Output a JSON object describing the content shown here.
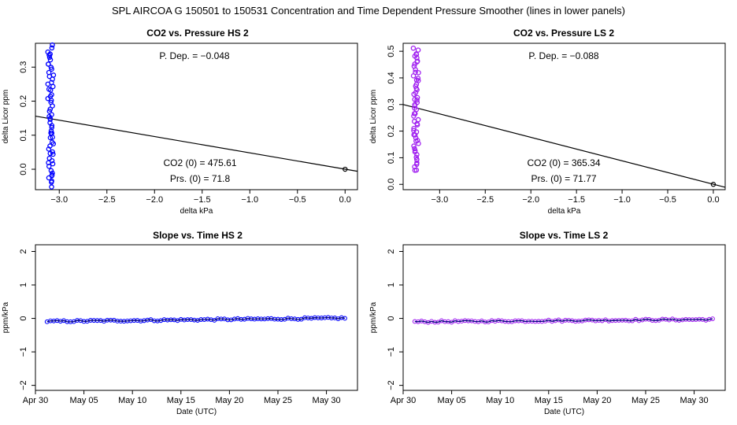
{
  "figure_title": "SPL   AIRCOA G   150501 to 150531   Concentration and Time Dependent Pressure Smoother (lines in lower panels)",
  "colors": {
    "hs": "#0000ff",
    "ls": "#a020f0",
    "line": "#000000",
    "dark_line": "#00007a"
  },
  "chart_data": [
    {
      "id": "hs-pressure",
      "type": "scatter",
      "title": "CO2 vs. Pressure HS 2",
      "xlabel": "delta kPa",
      "ylabel": "delta Licor ppm",
      "xlim": [
        -3.25,
        0.13
      ],
      "ylim": [
        -0.06,
        0.37
      ],
      "xticks": [
        -3.0,
        -2.5,
        -2.0,
        -1.5,
        -1.0,
        -0.5,
        0.0
      ],
      "xtick_labels": [
        "−3.0",
        "−2.5",
        "−2.0",
        "−1.5",
        "−1.0",
        "−0.5",
        "0.0"
      ],
      "yticks": [
        0.0,
        0.1,
        0.2,
        0.3
      ],
      "ytick_labels": [
        "0.0",
        "0.1",
        "0.2",
        "0.3"
      ],
      "cluster": {
        "x_center": -3.09,
        "x_spread": 0.05,
        "y_min": -0.05,
        "y_max": 0.36,
        "count": 60
      },
      "origin_point": [
        0.0,
        0.0
      ],
      "fit_line": {
        "x": [
          -3.25,
          0.13
        ],
        "y": [
          0.156,
          -0.006
        ]
      },
      "annotations": {
        "p_dep": "P. Dep. =  −0.048",
        "co2_0": "CO2 (0) =  475.61",
        "prs_0": "Prs. (0) = 71.8"
      }
    },
    {
      "id": "ls-pressure",
      "type": "scatter",
      "title": "CO2 vs. Pressure LS 2",
      "xlabel": "delta kPa",
      "ylabel": "delta Licor ppm",
      "xlim": [
        -3.4,
        0.13
      ],
      "ylim": [
        -0.02,
        0.53
      ],
      "xticks": [
        -3.0,
        -2.5,
        -2.0,
        -1.5,
        -1.0,
        -0.5,
        0.0
      ],
      "xtick_labels": [
        "−3.0",
        "−2.5",
        "−2.0",
        "−1.5",
        "−1.0",
        "−0.5",
        "0.0"
      ],
      "yticks": [
        0.0,
        0.1,
        0.2,
        0.3,
        0.4,
        0.5
      ],
      "ytick_labels": [
        "0.0",
        "0.1",
        "0.2",
        "0.3",
        "0.4",
        "0.5"
      ],
      "cluster": {
        "x_center": -3.26,
        "x_spread": 0.05,
        "y_min": 0.05,
        "y_max": 0.51,
        "count": 60
      },
      "origin_point": [
        0.0,
        0.0
      ],
      "fit_line": {
        "x": [
          -3.4,
          0.13
        ],
        "y": [
          0.3,
          -0.011
        ]
      },
      "annotations": {
        "p_dep": "P. Dep. =  −0.088",
        "co2_0": "CO2 (0) =  365.34",
        "prs_0": "Prs. (0) = 71.77"
      }
    },
    {
      "id": "hs-slope",
      "type": "line",
      "title": "Slope vs. Time HS 2",
      "xlabel": "Date (UTC)",
      "ylabel": "ppm/kPa",
      "xlim": [
        30.0,
        63.2
      ],
      "ylim": [
        -2.15,
        2.2
      ],
      "xticks": [
        30,
        35,
        40,
        45,
        50,
        55,
        60
      ],
      "xtick_labels": [
        "Apr 30",
        "May 05",
        "May 10",
        "May 15",
        "May 20",
        "May 25",
        "May 30"
      ],
      "yticks": [
        -2,
        -1,
        0,
        1,
        2
      ],
      "ytick_labels": [
        "−2",
        "−1",
        "0",
        "1",
        "2"
      ],
      "series": {
        "x_start": 31.2,
        "x_end": 61.9,
        "y_start": -0.09,
        "y_end": 0.01,
        "count": 90
      }
    },
    {
      "id": "ls-slope",
      "type": "line",
      "title": "Slope vs. Time LS 2",
      "xlabel": "Date (UTC)",
      "ylabel": "ppm/kPa",
      "xlim": [
        30.0,
        63.2
      ],
      "ylim": [
        -2.15,
        2.2
      ],
      "xticks": [
        30,
        35,
        40,
        45,
        50,
        55,
        60
      ],
      "xtick_labels": [
        "Apr 30",
        "May 05",
        "May 10",
        "May 15",
        "May 20",
        "May 25",
        "May 30"
      ],
      "yticks": [
        -2,
        -1,
        0,
        1,
        2
      ],
      "ytick_labels": [
        "−2",
        "−1",
        "0",
        "1",
        "2"
      ],
      "series": {
        "x_start": 31.2,
        "x_end": 61.9,
        "y_start": -0.1,
        "y_end": -0.03,
        "count": 90
      }
    }
  ]
}
